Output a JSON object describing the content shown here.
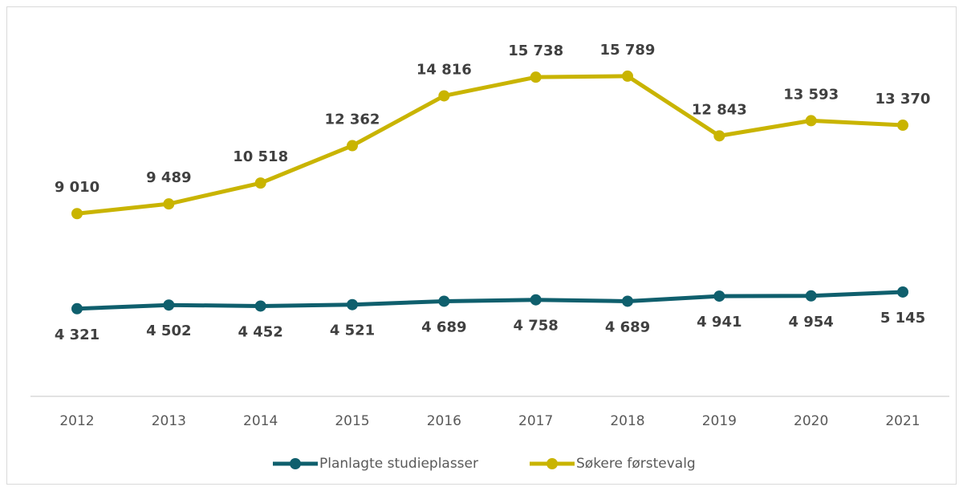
{
  "chart_data": {
    "type": "line",
    "categories": [
      "2012",
      "2013",
      "2014",
      "2015",
      "2016",
      "2017",
      "2018",
      "2019",
      "2020",
      "2021"
    ],
    "series": [
      {
        "name": "Planlagte studieplasser",
        "color": "#0f5f6d",
        "values": [
          4321,
          4502,
          4452,
          4521,
          4689,
          4758,
          4689,
          4941,
          4954,
          5145
        ],
        "value_labels": [
          "4 321",
          "4 502",
          "4 452",
          "4 521",
          "4 689",
          "4 758",
          "4 689",
          "4 941",
          "4 954",
          "5 145"
        ]
      },
      {
        "name": "Søkere førstevalg",
        "color": "#c9b400",
        "values": [
          9010,
          9489,
          10518,
          12362,
          14816,
          15738,
          15789,
          12843,
          13593,
          13370
        ],
        "value_labels": [
          "9 010",
          "9 489",
          "10 518",
          "12 362",
          "14 816",
          "15 738",
          "15 789",
          "12 843",
          "13 593",
          "13 370"
        ]
      }
    ],
    "ylim": [
      0,
      18000
    ],
    "legend": "bottom"
  }
}
